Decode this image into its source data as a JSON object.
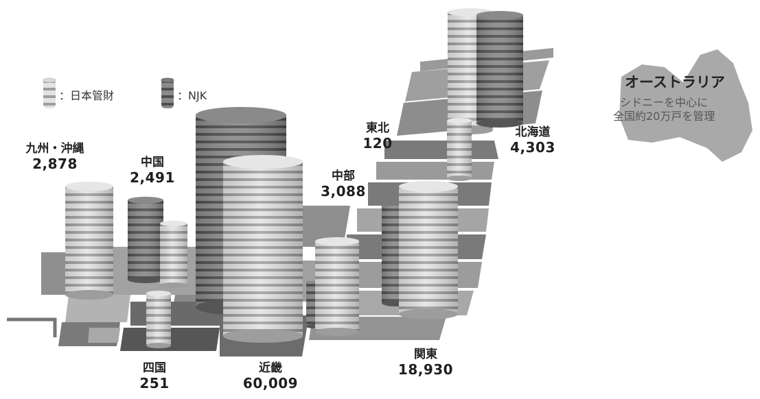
{
  "legend": {
    "nihon_kanzai": "：日本管財",
    "njk": "：NJK"
  },
  "colors": {
    "nihon_kanzai": "#dcdcdc",
    "njk": "#7a7a7a",
    "map_dark": "#6e6e6e",
    "map_mid": "#8c8c8c",
    "map_light": "#b4b4b4"
  },
  "australia": {
    "title": "オーストラリア",
    "line1": "シドニーを中心に",
    "line2": "全国約20万戸を管理"
  },
  "chart_data": {
    "type": "other",
    "regions": [
      {
        "name": "九州・沖縄",
        "value_label": "2,878",
        "value": 2878,
        "companies": [
          "nihon_kanzai"
        ]
      },
      {
        "name": "中国",
        "value_label": "2,491",
        "value": 2491,
        "companies": [
          "njk",
          "nihon_kanzai"
        ]
      },
      {
        "name": "四国",
        "value_label": "251",
        "value": 251,
        "companies": [
          "nihon_kanzai"
        ]
      },
      {
        "name": "近畿",
        "value_label": "60,009",
        "value": 60009,
        "companies": [
          "njk",
          "nihon_kanzai"
        ]
      },
      {
        "name": "中部",
        "value_label": "3,088",
        "value": 3088,
        "companies": [
          "njk",
          "nihon_kanzai"
        ]
      },
      {
        "name": "関東",
        "value_label": "18,930",
        "value": 18930,
        "companies": [
          "njk",
          "nihon_kanzai"
        ]
      },
      {
        "name": "東北",
        "value_label": "120",
        "value": 120,
        "companies": [
          "nihon_kanzai"
        ]
      },
      {
        "name": "北海道",
        "value_label": "4,303",
        "value": 4303,
        "companies": [
          "nihon_kanzai",
          "njk"
        ]
      }
    ]
  }
}
